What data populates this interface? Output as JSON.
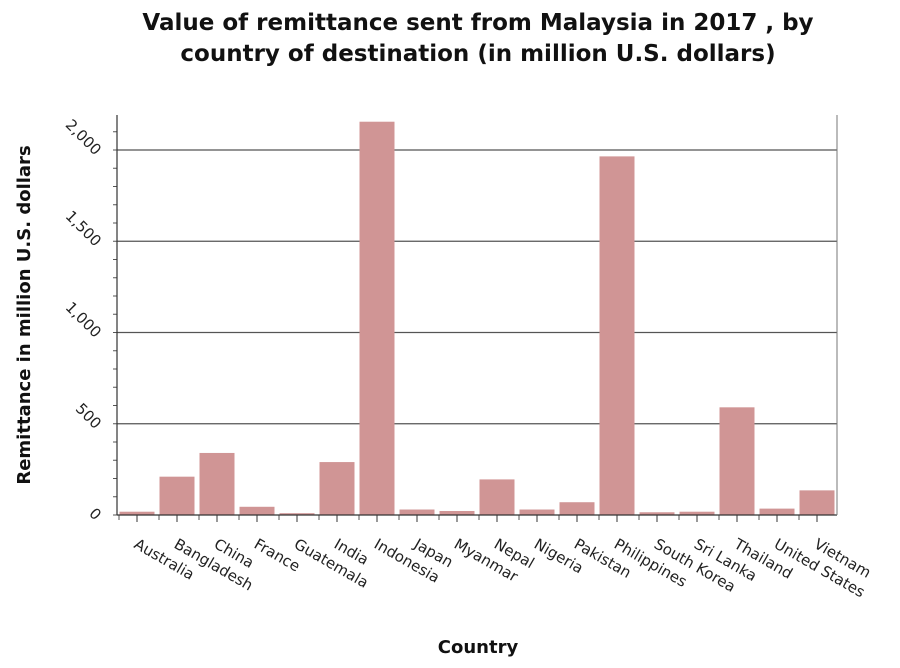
{
  "chart_data": {
    "type": "bar",
    "title": "Value of remittance sent from Malaysia in 2017 , by country of destination (in million U.S. dollars)",
    "xlabel": "Country",
    "ylabel": "Remittance in million U.S. dollars",
    "categories": [
      "Australia",
      "Bangladesh",
      "China",
      "France",
      "Guatemala",
      "India",
      "Indonesia",
      "Japan",
      "Myanmar",
      "Nepal",
      "Nigeria",
      "Pakistan",
      "Philippines",
      "South Korea",
      "Sri Lanka",
      "Thailand",
      "United States",
      "Vietnam"
    ],
    "values": [
      18,
      210,
      340,
      45,
      10,
      290,
      2155,
      30,
      22,
      195,
      30,
      70,
      1965,
      15,
      18,
      590,
      35,
      135
    ],
    "ylim": [
      0,
      2200
    ],
    "yticks": [
      0,
      500,
      1000,
      1500,
      2000
    ],
    "ytick_labels": [
      "0",
      "500",
      "1,000",
      "1,500",
      "2,000"
    ],
    "grid": "horizontal",
    "bar_color": "#d09595",
    "grid_color": "#555555"
  }
}
